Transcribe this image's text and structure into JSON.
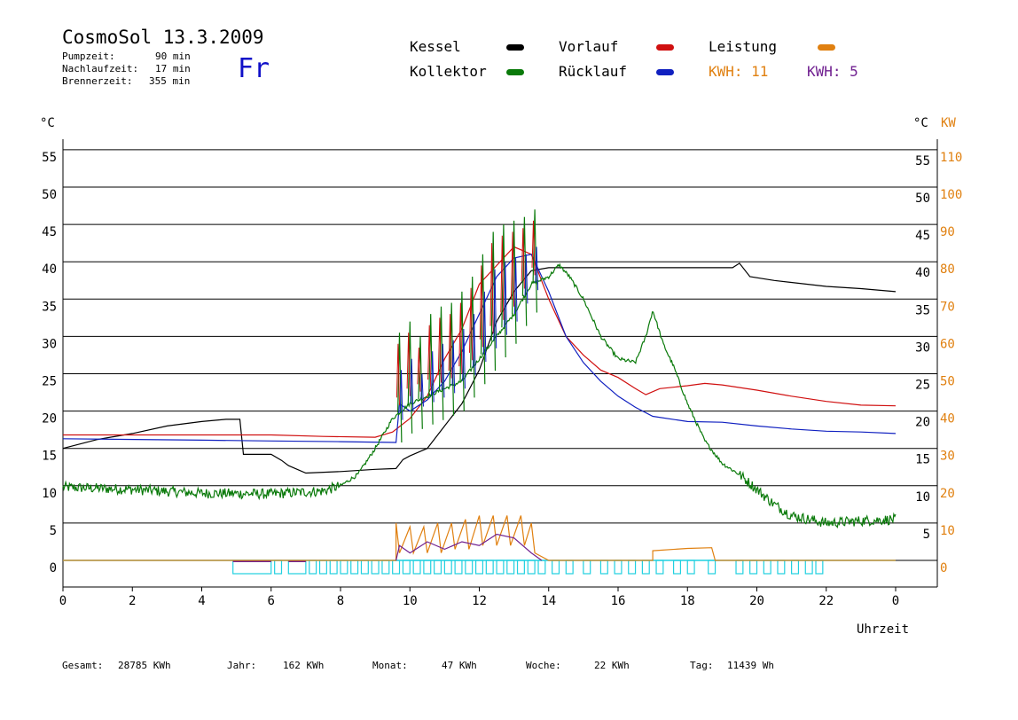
{
  "header": {
    "title": "CosmoSol 13.3.2009",
    "weekday": "Fr",
    "stats": [
      {
        "label": "Pumpzeit:",
        "value": "90 min"
      },
      {
        "label": "Nachlaufzeit:",
        "value": "17 min"
      },
      {
        "label": "Brennerzeit:",
        "value": "355 min"
      }
    ]
  },
  "legend": {
    "kessel": "Kessel",
    "kollektor": "Kollektor",
    "vorlauf": "Vorlauf",
    "ruecklauf": "Rücklauf",
    "leistung": "Leistung",
    "kwh1": "KWH: 11",
    "kwh2": "KWH: 5"
  },
  "footer": [
    {
      "label": "Gesamt:",
      "value": "28785 KWh"
    },
    {
      "label": "Jahr:",
      "value": "162 KWh"
    },
    {
      "label": "Monat:",
      "value": "47 KWh"
    },
    {
      "label": "Woche:",
      "value": "22 KWh"
    },
    {
      "label": "Tag:",
      "value": "11439 Wh"
    }
  ],
  "chart_data": {
    "type": "line",
    "xlabel": "Uhrzeit",
    "ylabel_left": "°C",
    "ylabel_right": "°C",
    "ylabel_right2": "KW",
    "x_ticks": [
      "0",
      "2",
      "4",
      "6",
      "8",
      "10",
      "12",
      "14",
      "16",
      "18",
      "20",
      "22",
      "0"
    ],
    "y_ticks_left": [
      "0",
      "5",
      "10",
      "15",
      "20",
      "25",
      "30",
      "35",
      "40",
      "45",
      "50",
      "55"
    ],
    "y_ticks_right": [
      "5",
      "10",
      "15",
      "20",
      "25",
      "30",
      "35",
      "40",
      "45",
      "50",
      "55"
    ],
    "y_ticks_kw": [
      "0",
      "10",
      "20",
      "30",
      "40",
      "50",
      "60",
      "70",
      "80",
      "90",
      "100",
      "110"
    ],
    "xlim": [
      0,
      24
    ],
    "ylim": [
      -3.5,
      57
    ],
    "colors": {
      "kessel": "#000000",
      "kollektor": "#0a7a0a",
      "vorlauf": "#d01010",
      "ruecklauf": "#1020c0",
      "leistung": "#e08010",
      "kwh2": "#702090",
      "pump": "#20d0e0"
    },
    "series": [
      {
        "name": "Kessel",
        "color": "#000000",
        "points": [
          [
            0,
            15
          ],
          [
            1,
            16.2
          ],
          [
            2,
            17
          ],
          [
            3,
            18
          ],
          [
            4,
            18.6
          ],
          [
            4.7,
            18.9
          ],
          [
            5.1,
            18.9
          ],
          [
            5.2,
            14.2
          ],
          [
            6,
            14.2
          ],
          [
            6.3,
            13.4
          ],
          [
            6.5,
            12.7
          ],
          [
            7,
            11.7
          ],
          [
            8,
            11.9
          ],
          [
            9,
            12.2
          ],
          [
            9.6,
            12.3
          ],
          [
            9.8,
            13.5
          ],
          [
            10,
            14
          ],
          [
            10.5,
            15
          ],
          [
            11,
            18
          ],
          [
            11.5,
            21
          ],
          [
            12,
            25.5
          ],
          [
            12.5,
            32
          ],
          [
            13,
            36
          ],
          [
            13.5,
            38.8
          ],
          [
            14,
            39.2
          ],
          [
            15,
            39.2
          ],
          [
            17,
            39.2
          ],
          [
            19.3,
            39.2
          ],
          [
            19.5,
            39.8
          ],
          [
            19.8,
            38
          ],
          [
            20.5,
            37.5
          ],
          [
            22,
            36.7
          ],
          [
            23,
            36.4
          ],
          [
            24,
            36
          ]
        ]
      },
      {
        "name": "Vorlauf",
        "color": "#d01010",
        "points": [
          [
            0,
            16.8
          ],
          [
            4,
            16.8
          ],
          [
            6,
            16.8
          ],
          [
            7.5,
            16.6
          ],
          [
            9,
            16.5
          ],
          [
            9.5,
            17.2
          ],
          [
            10,
            19
          ],
          [
            10.5,
            22
          ],
          [
            11,
            27
          ],
          [
            11.5,
            31
          ],
          [
            12,
            37
          ],
          [
            12.5,
            39.5
          ],
          [
            13,
            42
          ],
          [
            13.5,
            41
          ],
          [
            14,
            35
          ],
          [
            14.5,
            30
          ],
          [
            15,
            27.5
          ],
          [
            15.5,
            25.5
          ],
          [
            16,
            24.5
          ],
          [
            16.5,
            23
          ],
          [
            16.8,
            22.2
          ],
          [
            17.2,
            23
          ],
          [
            18,
            23.4
          ],
          [
            18.5,
            23.7
          ],
          [
            19,
            23.5
          ],
          [
            20,
            22.8
          ],
          [
            21,
            22
          ],
          [
            22,
            21.3
          ],
          [
            23,
            20.8
          ],
          [
            24,
            20.7
          ]
        ]
      },
      {
        "name": "Rücklauf",
        "color": "#1020c0",
        "points": [
          [
            0,
            16.3
          ],
          [
            4,
            16.1
          ],
          [
            6,
            16
          ],
          [
            8,
            15.9
          ],
          [
            9.6,
            15.8
          ],
          [
            9.7,
            21
          ],
          [
            10,
            20
          ],
          [
            10.5,
            21.5
          ],
          [
            11,
            24
          ],
          [
            11.5,
            28
          ],
          [
            12,
            33
          ],
          [
            12.5,
            38
          ],
          [
            13,
            40.5
          ],
          [
            13.5,
            41
          ],
          [
            14,
            36
          ],
          [
            14.5,
            30
          ],
          [
            15,
            26.5
          ],
          [
            15.5,
            24
          ],
          [
            16,
            22
          ],
          [
            16.5,
            20.5
          ],
          [
            17,
            19.3
          ],
          [
            18,
            18.6
          ],
          [
            19,
            18.5
          ],
          [
            20,
            18
          ],
          [
            21,
            17.6
          ],
          [
            22,
            17.3
          ],
          [
            23,
            17.2
          ],
          [
            24,
            17
          ]
        ]
      },
      {
        "name": "Kollektor",
        "color": "#0a7a0a",
        "points": [
          [
            0,
            9.8
          ],
          [
            2,
            9.5
          ],
          [
            4,
            9
          ],
          [
            6,
            8.9
          ],
          [
            7.5,
            9.3
          ],
          [
            8,
            10
          ],
          [
            8.5,
            11.5
          ],
          [
            9,
            15
          ],
          [
            9.5,
            19
          ],
          [
            10,
            21
          ],
          [
            10.5,
            22
          ],
          [
            11,
            23
          ],
          [
            11.5,
            24
          ],
          [
            12,
            27
          ],
          [
            12.5,
            30
          ],
          [
            13,
            33
          ],
          [
            13.5,
            37
          ],
          [
            14,
            38
          ],
          [
            14.3,
            39.6
          ],
          [
            14.6,
            38
          ],
          [
            15,
            35
          ],
          [
            15.5,
            30
          ],
          [
            16,
            27
          ],
          [
            16.5,
            26.5
          ],
          [
            16.8,
            30
          ],
          [
            17,
            33.5
          ],
          [
            17.3,
            29
          ],
          [
            17.6,
            26
          ],
          [
            18,
            21
          ],
          [
            18.5,
            16
          ],
          [
            19,
            13
          ],
          [
            19.5,
            11.5
          ],
          [
            20,
            9.5
          ],
          [
            20.5,
            7.5
          ],
          [
            21,
            6
          ],
          [
            22,
            5
          ],
          [
            23,
            5.3
          ],
          [
            24,
            5.5
          ]
        ]
      },
      {
        "name": "Kollektor-Spitzen",
        "color": "#0a7a0a",
        "peaks": [
          [
            9.7,
            30.5
          ],
          [
            10,
            32
          ],
          [
            10.3,
            30
          ],
          [
            10.6,
            33
          ],
          [
            10.9,
            34
          ],
          [
            11.2,
            34.5
          ],
          [
            11.5,
            36
          ],
          [
            11.8,
            38
          ],
          [
            12.1,
            41
          ],
          [
            12.4,
            44
          ],
          [
            12.7,
            45
          ],
          [
            13,
            45.5
          ],
          [
            13.3,
            46
          ],
          [
            13.6,
            47
          ]
        ]
      },
      {
        "name": "Leistung",
        "color": "#e08010",
        "points": [
          [
            0,
            0
          ],
          [
            9.6,
            0
          ],
          [
            9.6,
            5
          ],
          [
            9.7,
            1
          ],
          [
            10,
            4.5
          ],
          [
            10.1,
            1
          ],
          [
            10.4,
            4.5
          ],
          [
            10.5,
            1
          ],
          [
            10.8,
            5
          ],
          [
            10.9,
            1
          ],
          [
            11.2,
            5
          ],
          [
            11.3,
            1.5
          ],
          [
            11.6,
            5.5
          ],
          [
            11.7,
            1.5
          ],
          [
            12,
            6
          ],
          [
            12.1,
            2
          ],
          [
            12.4,
            6
          ],
          [
            12.5,
            2
          ],
          [
            12.8,
            6
          ],
          [
            12.9,
            2
          ],
          [
            13.2,
            6
          ],
          [
            13.3,
            2
          ],
          [
            13.5,
            5
          ],
          [
            13.6,
            1
          ],
          [
            14,
            0
          ],
          [
            17,
            0
          ],
          [
            17,
            1.3
          ],
          [
            18,
            1.6
          ],
          [
            18.7,
            1.7
          ],
          [
            18.8,
            0
          ],
          [
            24,
            0
          ]
        ]
      },
      {
        "name": "KWH2",
        "color": "#702090",
        "points": [
          [
            9.6,
            0
          ],
          [
            9.7,
            2
          ],
          [
            10,
            1
          ],
          [
            10.5,
            2.5
          ],
          [
            11,
            1.5
          ],
          [
            11.5,
            2.5
          ],
          [
            12,
            2
          ],
          [
            12.5,
            3.5
          ],
          [
            13,
            3
          ],
          [
            13.5,
            1
          ],
          [
            13.8,
            0
          ]
        ]
      }
    ],
    "pump_segments": [
      [
        4.9,
        6.0
      ],
      [
        6.1,
        6.3
      ],
      [
        6.5,
        7.0
      ],
      [
        7.1,
        7.3
      ],
      [
        7.4,
        7.6
      ],
      [
        7.7,
        7.9
      ],
      [
        8.0,
        8.2
      ],
      [
        8.3,
        8.5
      ],
      [
        8.6,
        8.8
      ],
      [
        8.9,
        9.1
      ],
      [
        9.2,
        9.4
      ],
      [
        9.5,
        9.7
      ],
      [
        9.8,
        10.0
      ],
      [
        10.1,
        10.3
      ],
      [
        10.4,
        10.6
      ],
      [
        10.7,
        10.9
      ],
      [
        11.0,
        11.2
      ],
      [
        11.3,
        11.5
      ],
      [
        11.6,
        11.8
      ],
      [
        11.9,
        12.1
      ],
      [
        12.2,
        12.4
      ],
      [
        12.5,
        12.7
      ],
      [
        12.8,
        13.0
      ],
      [
        13.1,
        13.3
      ],
      [
        13.4,
        13.6
      ],
      [
        13.7,
        13.9
      ],
      [
        14.1,
        14.3
      ],
      [
        14.5,
        14.7
      ],
      [
        15.0,
        15.2
      ],
      [
        15.5,
        15.7
      ],
      [
        15.9,
        16.1
      ],
      [
        16.3,
        16.5
      ],
      [
        16.7,
        16.9
      ],
      [
        17.1,
        17.3
      ],
      [
        17.6,
        17.8
      ],
      [
        18.0,
        18.2
      ],
      [
        18.6,
        18.8
      ],
      [
        19.4,
        19.6
      ],
      [
        19.8,
        20.0
      ],
      [
        20.2,
        20.4
      ],
      [
        20.6,
        20.8
      ],
      [
        21.0,
        21.2
      ],
      [
        21.4,
        21.6
      ],
      [
        21.7,
        21.9
      ]
    ],
    "grid": true
  }
}
